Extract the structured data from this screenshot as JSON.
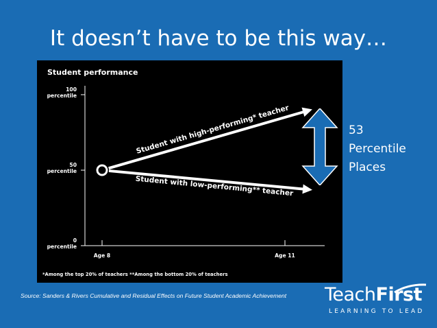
{
  "slide": {
    "title": "It doesn’t have to be this way…",
    "side_text": [
      "53",
      "Percentile",
      "Places"
    ],
    "source": "Source: Sanders & Rivers Cumulative and Residual Effects on Future Student Academic Achievement"
  },
  "logo": {
    "word_regular": "Teach",
    "word_bold": "First",
    "tagline": "LEARNING TO LEAD"
  },
  "colors": {
    "background": "#1a6cb4",
    "panel": "#000000",
    "arrow": "#1a6cb4",
    "line": "#ffffff"
  },
  "chart_data": {
    "type": "line",
    "title": "Student performance",
    "footnote": "*Among the top 20% of teachers  **Among the bottom 20% of teachers",
    "x_ticks": [
      "Age 8",
      "Age 11"
    ],
    "y_ticks": [
      {
        "value": 100,
        "label_top": "100",
        "label_bottom": "percentile"
      },
      {
        "value": 50,
        "label_top": "50",
        "label_bottom": "percentile"
      },
      {
        "value": 0,
        "label_top": "0",
        "label_bottom": "percentile"
      }
    ],
    "ylim": [
      0,
      100
    ],
    "series": [
      {
        "name": "Student with high-performing* teacher",
        "x": [
          "Age 8",
          "Age 11"
        ],
        "y": [
          50,
          90
        ]
      },
      {
        "name": "Student with low-performing** teacher",
        "x": [
          "Age 8",
          "Age 11"
        ],
        "y": [
          50,
          37
        ]
      }
    ],
    "gap": 53
  }
}
